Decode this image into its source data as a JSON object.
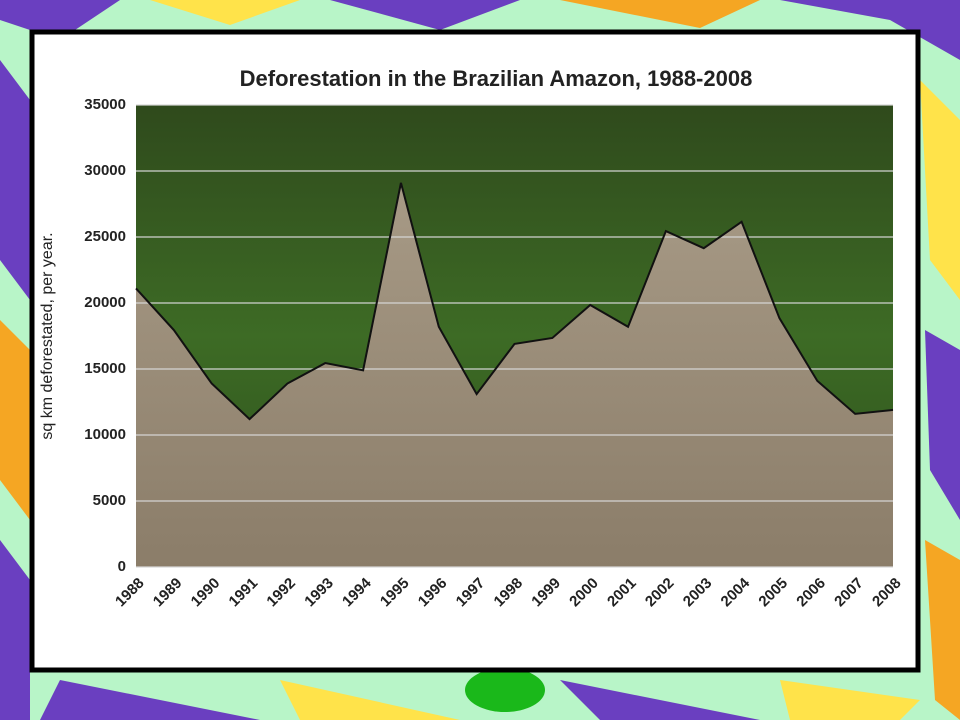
{
  "chart_data": {
    "type": "area",
    "title": "Deforestation in the Brazilian Amazon, 1988-2008",
    "y_label": "sq km deforestated, per year.",
    "categories": [
      "1988",
      "1989",
      "1990",
      "1991",
      "1992",
      "1993",
      "1994",
      "1995",
      "1996",
      "1997",
      "1998",
      "1999",
      "2000",
      "2001",
      "2002",
      "2003",
      "2004",
      "2005",
      "2006",
      "2007",
      "2008"
    ],
    "values": [
      21100,
      17950,
      13900,
      11200,
      13900,
      15450,
      14900,
      29100,
      18200,
      13100,
      16900,
      17350,
      19850,
      18200,
      25450,
      24150,
      26150,
      18850,
      14100,
      11600,
      11900
    ],
    "color": "#111111",
    "ylim": [
      0,
      35000
    ],
    "yticks": [
      0,
      5000,
      10000,
      15000,
      20000,
      25000,
      30000,
      35000
    ],
    "grid": true
  }
}
